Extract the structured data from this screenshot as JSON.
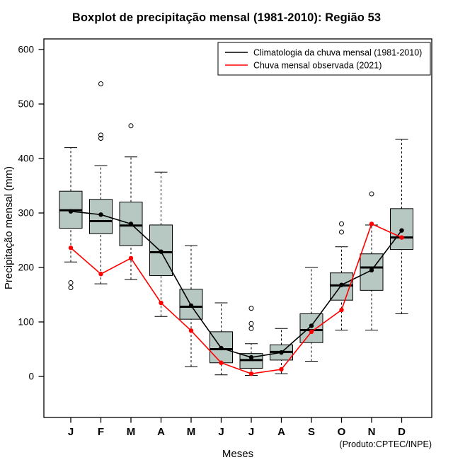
{
  "chart_data": {
    "type": "boxplot",
    "title": "Boxplot de precipitação mensal (1981-2010): Região 53",
    "xlabel": "Meses",
    "ylabel": "Precipitação mensal (mm)",
    "footnote": "(Produto:CPTEC/INPE)",
    "ylim": [
      0,
      600
    ],
    "yticks": [
      0,
      100,
      200,
      300,
      400,
      500,
      600
    ],
    "categories": [
      "J",
      "F",
      "M",
      "A",
      "M",
      "J",
      "J",
      "A",
      "S",
      "O",
      "N",
      "D"
    ],
    "grid": false,
    "legend_position": "top-right",
    "box_fill_color": "#b7c8c3",
    "boxes": [
      {
        "whisker_low": 210,
        "q1": 272,
        "median": 305,
        "q3": 340,
        "whisker_high": 420,
        "outliers": [
          163,
          172
        ]
      },
      {
        "whisker_low": 170,
        "q1": 262,
        "median": 285,
        "q3": 325,
        "whisker_high": 387,
        "outliers": [
          437,
          443,
          537
        ]
      },
      {
        "whisker_low": 178,
        "q1": 240,
        "median": 277,
        "q3": 320,
        "whisker_high": 403,
        "outliers": [
          460
        ]
      },
      {
        "whisker_low": 110,
        "q1": 185,
        "median": 228,
        "q3": 278,
        "whisker_high": 375,
        "outliers": []
      },
      {
        "whisker_low": 18,
        "q1": 105,
        "median": 128,
        "q3": 160,
        "whisker_high": 240,
        "outliers": []
      },
      {
        "whisker_low": 3,
        "q1": 25,
        "median": 50,
        "q3": 82,
        "whisker_high": 135,
        "outliers": []
      },
      {
        "whisker_low": 2,
        "q1": 15,
        "median": 30,
        "q3": 42,
        "whisker_high": 60,
        "outliers": [
          88,
          97,
          125
        ]
      },
      {
        "whisker_low": 5,
        "q1": 30,
        "median": 45,
        "q3": 58,
        "whisker_high": 88,
        "outliers": []
      },
      {
        "whisker_low": 28,
        "q1": 62,
        "median": 85,
        "q3": 115,
        "whisker_high": 200,
        "outliers": []
      },
      {
        "whisker_low": 85,
        "q1": 140,
        "median": 167,
        "q3": 190,
        "whisker_high": 238,
        "outliers": [
          265,
          280
        ]
      },
      {
        "whisker_low": 85,
        "q1": 158,
        "median": 200,
        "q3": 225,
        "whisker_high": 278,
        "outliers": [
          335
        ]
      },
      {
        "whisker_low": 115,
        "q1": 233,
        "median": 255,
        "q3": 308,
        "whisker_high": 435,
        "outliers": []
      }
    ],
    "series": [
      {
        "name": "Climatologia da chuva mensal (1981-2010)",
        "color": "#000000",
        "values": [
          303,
          297,
          280,
          229,
          130,
          52,
          35,
          44,
          93,
          168,
          195,
          268
        ]
      },
      {
        "name": "Chuva mensal observada (2021)",
        "color": "#ff0000",
        "values": [
          236,
          188,
          217,
          135,
          84,
          25,
          5,
          13,
          82,
          122,
          280,
          255
        ]
      }
    ]
  }
}
